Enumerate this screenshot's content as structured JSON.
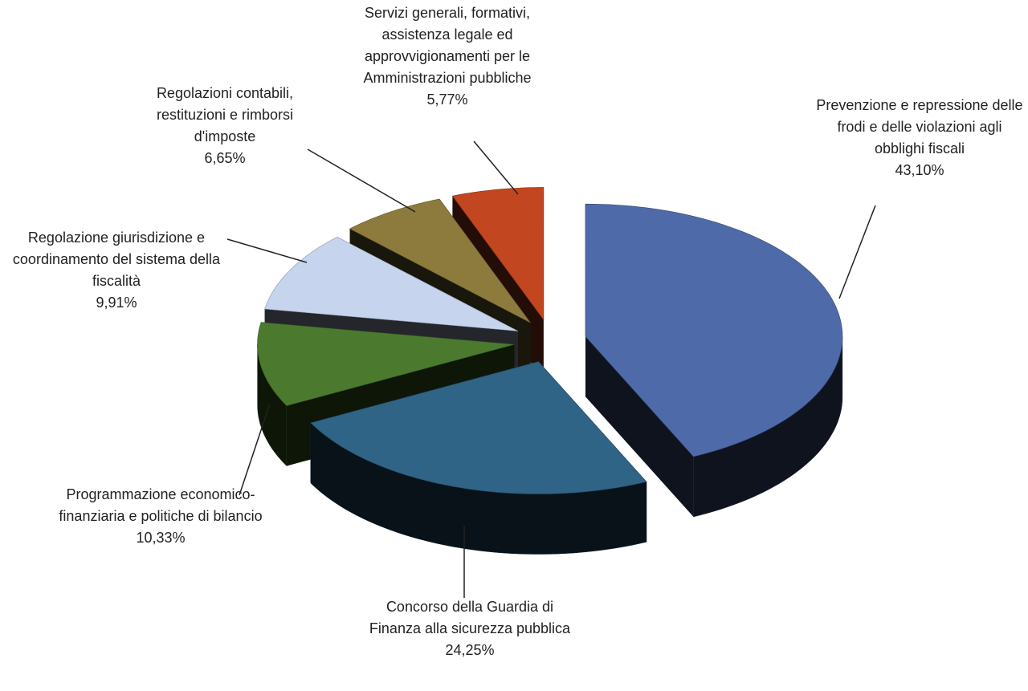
{
  "chart_data": {
    "type": "pie3d",
    "categories": [
      "Prevenzione e repressione delle frodi e delle violazioni agli obblighi fiscali",
      "Concorso della Guardia di Finanza alla sicurezza pubblica",
      "Programmazione economico-finanziaria e politiche di bilancio",
      "Regolazione giurisdizione e coordinamento del sistema della fiscalità",
      "Regolazioni contabili, restituzioni e rimborsi d'imposte",
      "Servizi generali, formativi, assistenza legale ed approvvigionamenti per le Amministrazioni pubbliche"
    ],
    "values": [
      43.1,
      24.25,
      10.33,
      9.91,
      6.65,
      5.77
    ],
    "value_labels": [
      "43,10%",
      "24,25%",
      "10,33%",
      "9,91%",
      "6,65%",
      "5,77%"
    ],
    "colors": [
      "#4f6aa8",
      "#2f6486",
      "#4b7a2f",
      "#c6d4ee",
      "#8c7b3c",
      "#c2461f"
    ]
  }
}
